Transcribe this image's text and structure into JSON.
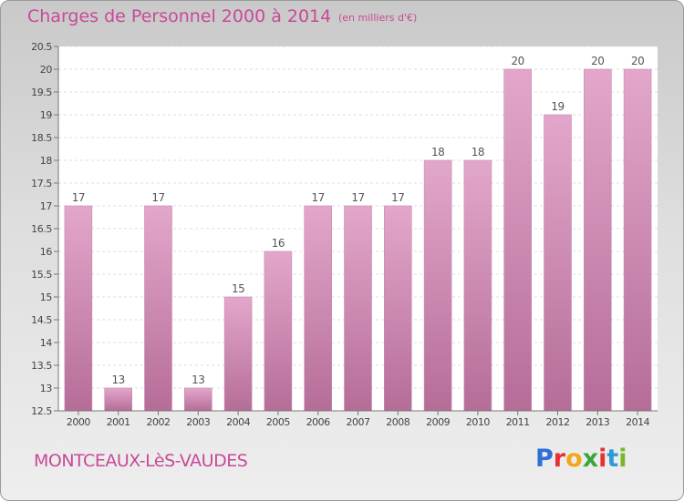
{
  "header": {
    "title": "Charges de Personnel 2000 à 2014",
    "subtitle": "(en milliers d'€)"
  },
  "footer": {
    "place": "MONTCEAUX-LèS-VAUDES",
    "logo_letters": [
      "P",
      "r",
      "o",
      "x",
      "i",
      "t",
      "i"
    ],
    "logo_colors": [
      "#2f6fd6",
      "#e8322f",
      "#f2a81c",
      "#3aa53a",
      "#e8322f",
      "#2f9bd6",
      "#7bb52c"
    ]
  },
  "colors": {
    "title": "#c84a97",
    "bar_top": "#e3a7cb",
    "bar_bottom": "#b56d98",
    "bar_edge": "#c98bb1"
  },
  "chart_data": {
    "type": "bar",
    "title": "Charges de Personnel 2000 à 2014",
    "subtitle": "(en milliers d'€)",
    "categories": [
      "2000",
      "2001",
      "2002",
      "2003",
      "2004",
      "2005",
      "2006",
      "2007",
      "2008",
      "2009",
      "2010",
      "2011",
      "2012",
      "2013",
      "2014"
    ],
    "values": [
      17,
      13,
      17,
      13,
      15,
      16,
      17,
      17,
      17,
      18,
      18,
      20,
      19,
      20,
      20
    ],
    "data_labels": [
      "17",
      "13",
      "17",
      "13",
      "15",
      "16",
      "17",
      "17",
      "17",
      "18",
      "18",
      "20",
      "19",
      "20",
      "20"
    ],
    "ylim": [
      12.5,
      20.5
    ],
    "yticks": [
      12.5,
      13,
      13.5,
      14,
      14.5,
      15,
      15.5,
      16,
      16.5,
      17,
      17.5,
      18,
      18.5,
      19,
      19.5,
      20,
      20.5
    ],
    "ytick_labels": [
      "12.5",
      "13",
      "13.5",
      "14",
      "14.5",
      "15",
      "15.5",
      "16",
      "16.5",
      "17",
      "17.5",
      "18",
      "18.5",
      "19",
      "19.5",
      "20",
      "20.5"
    ],
    "grid": true,
    "xlabel": "",
    "ylabel": ""
  }
}
